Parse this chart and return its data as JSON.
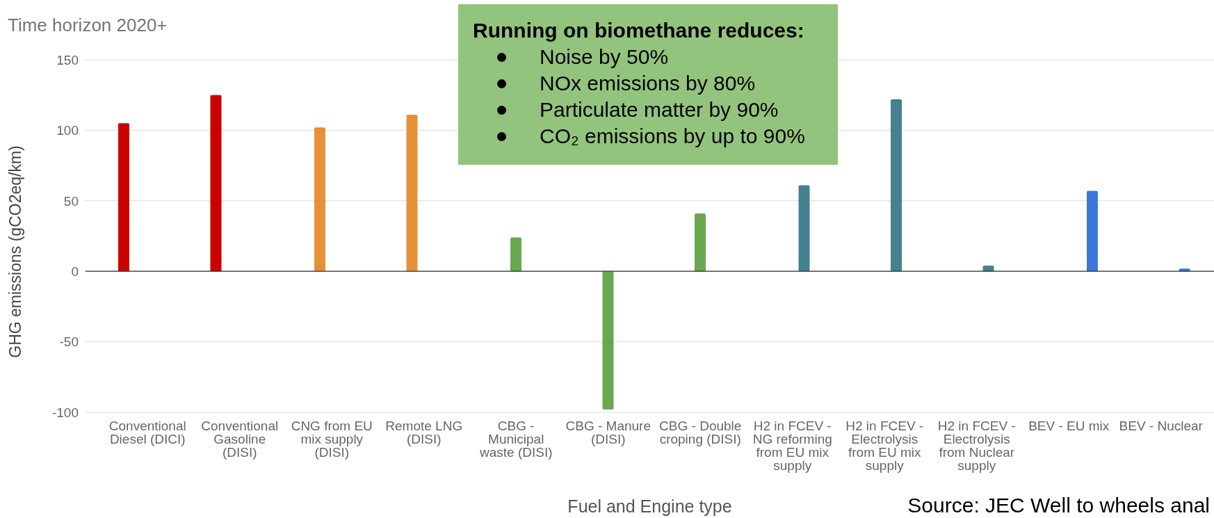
{
  "chart_data": {
    "type": "bar",
    "title": "Time horizon 2020+",
    "xlabel": "Fuel and Engine type",
    "ylabel": "GHG emissions (gCO2eq/km)",
    "categories": [
      "Conventional Diesel (DICI)",
      "Conventional Gasoline (DISI)",
      "CNG from EU mix supply (DISI)",
      "Remote LNG (DISI)",
      "CBG - Municipal waste (DISI)",
      "CBG - Manure (DISI)",
      "CBG - Double croping (DISI)",
      "H2 in FCEV - NG reforming from EU mix supply",
      "H2 in FCEV - Electrolysis from EU mix supply",
      "H2 in FCEV - Electrolysis from Nuclear supply",
      "BEV - EU mix",
      "BEV - Nuclear"
    ],
    "series": [
      {
        "color": "#cc0000",
        "values": [
          105,
          125,
          null,
          null,
          null,
          null,
          null,
          null,
          null,
          null,
          null,
          null
        ]
      },
      {
        "color": "#e69138",
        "values": [
          null,
          null,
          102,
          111,
          null,
          null,
          null,
          null,
          null,
          null,
          null,
          null
        ]
      },
      {
        "color": "#6aa84f",
        "values": [
          null,
          null,
          null,
          null,
          24,
          -98,
          41,
          null,
          null,
          null,
          null,
          null
        ]
      },
      {
        "color": "#45818e",
        "values": [
          null,
          null,
          null,
          null,
          null,
          null,
          null,
          61,
          122,
          4,
          null,
          null
        ]
      },
      {
        "color": "#3c78d8",
        "values": [
          null,
          null,
          null,
          null,
          null,
          null,
          null,
          null,
          null,
          null,
          57,
          2
        ]
      }
    ],
    "ylim": [
      -100,
      150
    ],
    "yticks": [
      -100,
      -50,
      0,
      50,
      100,
      150
    ],
    "grid": "y",
    "annotations": [
      "Running on biomethane reduces:",
      "Noise by 50%",
      "NOx emissions by 80%",
      "Particulate matter by 90%",
      "CO₂ emissions by up to 90%",
      "Source: JEC Well to wheels anal"
    ]
  }
}
